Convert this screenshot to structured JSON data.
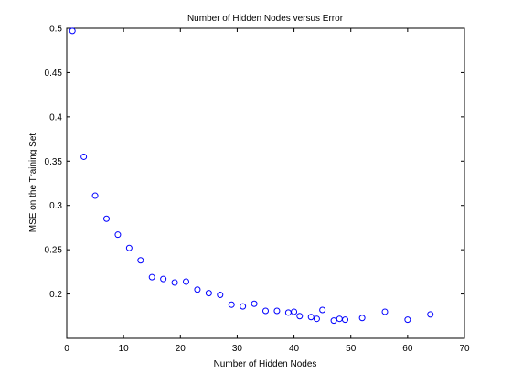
{
  "chart_data": {
    "type": "scatter",
    "title": "Number of Hidden Nodes versus Error",
    "xlabel": "Number of Hidden Nodes",
    "ylabel": "MSE on the Training Set",
    "xlim": [
      0,
      70
    ],
    "ylim": [
      0.15,
      0.5
    ],
    "xticks": [
      "0",
      "10",
      "20",
      "30",
      "40",
      "50",
      "60",
      "70"
    ],
    "yticks": [
      "0.2",
      "0.25",
      "0.3",
      "0.35",
      "0.4",
      "0.45",
      "0.5"
    ],
    "grid": false,
    "marker": "circle",
    "series": [
      {
        "x": [
          1,
          3,
          5,
          7,
          9,
          11,
          13,
          15,
          17,
          19,
          21,
          23,
          25,
          27,
          29,
          31,
          33,
          35,
          37,
          39,
          40,
          41,
          43,
          44,
          45,
          47,
          48,
          49,
          52,
          56,
          60,
          64
        ],
        "y": [
          0.497,
          0.355,
          0.311,
          0.285,
          0.267,
          0.252,
          0.238,
          0.219,
          0.217,
          0.213,
          0.214,
          0.205,
          0.201,
          0.199,
          0.188,
          0.186,
          0.189,
          0.181,
          0.181,
          0.179,
          0.18,
          0.175,
          0.174,
          0.172,
          0.182,
          0.17,
          0.172,
          0.171,
          0.173,
          0.18,
          0.171,
          0.177
        ]
      }
    ],
    "colors": {
      "marker": "#0000ff",
      "axis": "#000000",
      "background": "#ffffff"
    }
  }
}
